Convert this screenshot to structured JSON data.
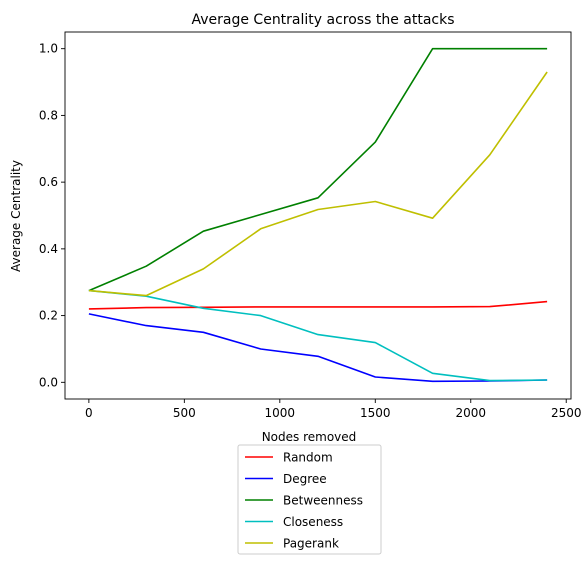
{
  "chart_data": {
    "type": "line",
    "title": "Average Centrality across the attacks",
    "xlabel": "Nodes removed",
    "ylabel": "Average Centrality",
    "xlim": [
      -125,
      2525
    ],
    "ylim": [
      -0.05,
      1.05
    ],
    "xticks": [
      0,
      500,
      1000,
      1500,
      2000,
      2500
    ],
    "xtick_labels": [
      "0",
      "500",
      "1000",
      "1500",
      "2000",
      "2500"
    ],
    "yticks": [
      0.0,
      0.2,
      0.4,
      0.6,
      0.8,
      1.0
    ],
    "ytick_labels": [
      "0.0",
      "0.2",
      "0.4",
      "0.6",
      "0.8",
      "1.0"
    ],
    "grid": false,
    "legend_position": "below-center",
    "x": [
      0,
      300,
      600,
      900,
      1200,
      1500,
      1800,
      2100,
      2400
    ],
    "series": [
      {
        "name": "Random",
        "color": "#ff0000",
        "values": [
          0.22,
          0.224,
          0.225,
          0.226,
          0.226,
          0.226,
          0.226,
          0.227,
          0.242
        ]
      },
      {
        "name": "Degree",
        "color": "#0000ff",
        "values": [
          0.205,
          0.17,
          0.15,
          0.1,
          0.078,
          0.016,
          0.003,
          0.004,
          0.007
        ]
      },
      {
        "name": "Betweenness",
        "color": "#008000",
        "values": [
          0.275,
          0.348,
          0.453,
          0.503,
          0.553,
          0.72,
          1.0,
          1.0,
          1.0
        ]
      },
      {
        "name": "Closeness",
        "color": "#00bfbf",
        "values": [
          0.275,
          0.258,
          0.222,
          0.2,
          0.143,
          0.119,
          0.027,
          0.005,
          0.007
        ]
      },
      {
        "name": "Pagerank",
        "color": "#bfbf00",
        "values": [
          0.275,
          0.26,
          0.34,
          0.46,
          0.518,
          0.542,
          0.492,
          0.682,
          0.93
        ]
      }
    ]
  }
}
